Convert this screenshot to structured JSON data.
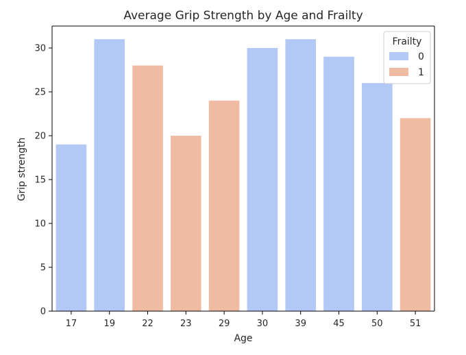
{
  "chart_data": {
    "type": "bar",
    "title": "Average Grip Strength by Age and Frailty",
    "xlabel": "Age",
    "ylabel": "Grip strength",
    "categories": [
      "17",
      "19",
      "22",
      "23",
      "29",
      "30",
      "39",
      "45",
      "50",
      "51"
    ],
    "values": [
      19,
      31,
      28,
      20,
      24,
      30,
      31,
      29,
      26,
      22
    ],
    "frailty": [
      "0",
      "0",
      "1",
      "1",
      "1",
      "0",
      "0",
      "0",
      "0",
      "1"
    ],
    "ylim": [
      0,
      32.5
    ],
    "yticks": [
      0,
      5,
      10,
      15,
      20,
      25,
      30
    ],
    "grid": false,
    "legend": {
      "title": "Frailty",
      "placement": "top-right",
      "entries": [
        {
          "label": "0",
          "color": "#b3c9f5"
        },
        {
          "label": "1",
          "color": "#f0bba3"
        }
      ]
    }
  }
}
